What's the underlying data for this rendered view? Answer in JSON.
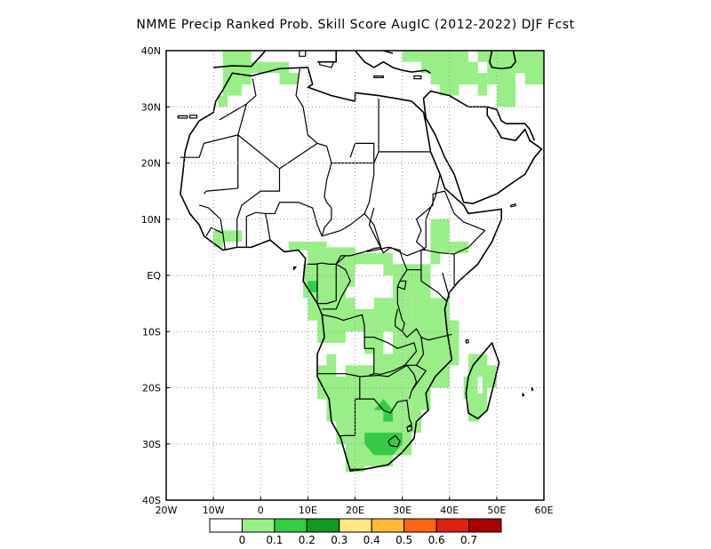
{
  "title": "NMME Precip Ranked Prob. Skill Score AugIC (2012-2022) DJF Fcst",
  "map": {
    "lon_range": [
      -20,
      60
    ],
    "lat_range": [
      -40,
      40
    ],
    "x_ticks": [
      {
        "value": -20,
        "label": "20W"
      },
      {
        "value": -10,
        "label": "10W"
      },
      {
        "value": 0,
        "label": "0"
      },
      {
        "value": 10,
        "label": "10E"
      },
      {
        "value": 20,
        "label": "20E"
      },
      {
        "value": 30,
        "label": "30E"
      },
      {
        "value": 40,
        "label": "40E"
      },
      {
        "value": 50,
        "label": "50E"
      },
      {
        "value": 60,
        "label": "60E"
      }
    ],
    "y_ticks": [
      {
        "value": 40,
        "label": "40N"
      },
      {
        "value": 30,
        "label": "30N"
      },
      {
        "value": 20,
        "label": "20N"
      },
      {
        "value": 10,
        "label": "10N"
      },
      {
        "value": 0,
        "label": "EQ"
      },
      {
        "value": -10,
        "label": "10S"
      },
      {
        "value": -20,
        "label": "20S"
      },
      {
        "value": -30,
        "label": "30S"
      },
      {
        "value": -40,
        "label": "40S"
      }
    ],
    "grid": "dotted",
    "fill_color_low": "#99ee88",
    "fill_color_mid": "#33cc44"
  },
  "colorbar": {
    "colors": [
      "#ffffff",
      "#99ee88",
      "#33cc44",
      "#119922",
      "#ffe680",
      "#ffbb33",
      "#ff6611",
      "#dd2211",
      "#aa0000"
    ],
    "labels": [
      "0",
      "0.1",
      "0.2",
      "0.3",
      "0.4",
      "0.5",
      "0.6",
      "0.7"
    ]
  }
}
